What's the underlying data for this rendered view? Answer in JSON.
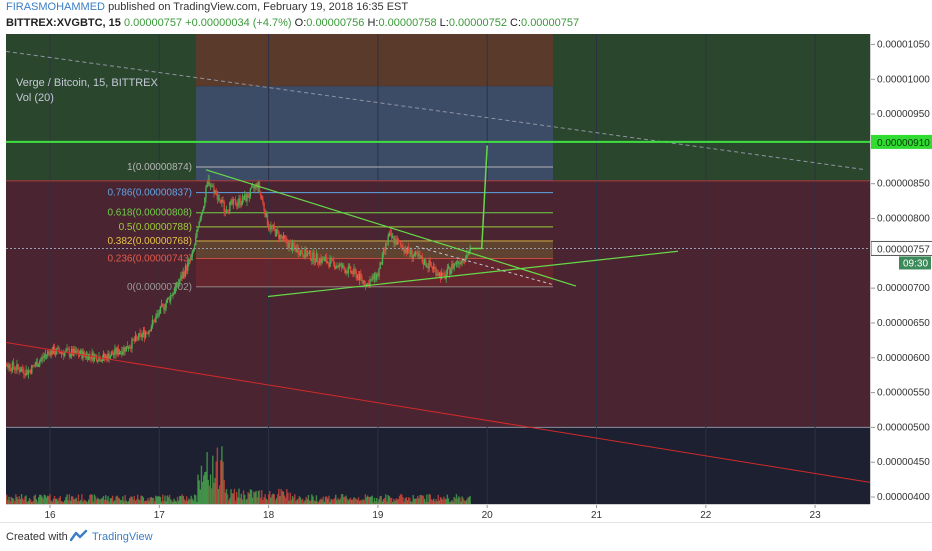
{
  "header": {
    "author": "FIRASMOHAMMED",
    "published_text": "published on TradingView.com, February 19, 2018 16:35 EST",
    "symbol": "BITTREX:XVGBTC, 15",
    "last": "0.00000757",
    "change": "+0.00000034 (+4.7%)",
    "o_label": "O:",
    "o": "0.00000756",
    "h_label": "H:",
    "h": "0.00000758",
    "l_label": "L:",
    "l": "0.00000752",
    "c_label": "C:",
    "c": "0.00000757"
  },
  "legend": {
    "title": "Verge / Bitcoin, 15, BITTREX",
    "volume": "Vol (20)"
  },
  "price_axis": {
    "ticks": [
      "0.00001050",
      "0.00001000",
      "0.00000950",
      "0.00000850",
      "0.00000800",
      "0.00000700",
      "0.00000650",
      "0.00000600",
      "0.00000550",
      "0.00000500",
      "0.00000450",
      "0.00000400"
    ],
    "current_price_label": "0.00000757",
    "countdown_label": "09:30",
    "target_label": "0.00000910"
  },
  "time_axis": {
    "ticks": [
      "16",
      "17",
      "18",
      "19",
      "20",
      "21",
      "22",
      "23"
    ]
  },
  "fib_levels": [
    {
      "label": "1(0.00000874)",
      "color": "#b5b5b5"
    },
    {
      "label": "0.786(0.00000837)",
      "color": "#5ea4e6"
    },
    {
      "label": "0.618(0.00000808)",
      "color": "#6fcf4a"
    },
    {
      "label": "0.5(0.00000788)",
      "color": "#9ccf3a"
    },
    {
      "label": "0.382(0.00000768)",
      "color": "#e8c44a"
    },
    {
      "label": "0.236(0.00000743)",
      "color": "#e55a4a"
    },
    {
      "label": "0(0.00000702)",
      "color": "#9a9a9a"
    }
  ],
  "footer": {
    "created_with": "Created with",
    "brand": "TradingView"
  },
  "colors": {
    "background": "#1c2030",
    "up": "#4caf50",
    "down": "#e0473c",
    "trendline": "#66d94a",
    "red_line": "#d22a2a",
    "accent": "#3a7ec6"
  },
  "chart_data": {
    "type": "line",
    "title": "Verge / Bitcoin, 15, BITTREX",
    "xlabel": "",
    "ylabel": "",
    "x_ticks": [
      "16",
      "17",
      "18",
      "19",
      "20",
      "21",
      "22",
      "23"
    ],
    "ylim": [
      3.9e-06,
      1.065e-05
    ],
    "x": [
      15.5,
      15.8,
      16.0,
      16.3,
      16.5,
      16.7,
      16.9,
      17.0,
      17.15,
      17.3,
      17.45,
      17.6,
      17.8,
      17.9,
      18.0,
      18.2,
      18.4,
      18.6,
      18.8,
      18.9,
      19.0,
      19.1,
      19.3,
      19.5,
      19.6,
      19.7,
      19.8,
      19.85
    ],
    "series": [
      {
        "values": [
          5.95e-06,
          5.8e-06,
          6.1e-06,
          6.05e-06,
          6e-06,
          6.15e-06,
          6.4e-06,
          6.65e-06,
          7e-06,
          7.45e-06,
          8.55e-06,
          8.15e-06,
          8.3e-06,
          8.5e-06,
          7.9e-06,
          7.6e-06,
          7.45e-06,
          7.35e-06,
          7.2e-06,
          7.05e-06,
          7.2e-06,
          7.75e-06,
          7.5e-06,
          7.3e-06,
          7.15e-06,
          7.35e-06,
          7.45e-06,
          7.57e-06
        ]
      }
    ],
    "fib_retracement": {
      "high": 8.74e-06,
      "low": 7.02e-06,
      "levels": [
        1,
        0.786,
        0.618,
        0.5,
        0.382,
        0.236,
        0
      ]
    },
    "horizontal_lines": [
      9.1e-06,
      8.54e-06
    ],
    "current_price": 7.57e-06
  }
}
